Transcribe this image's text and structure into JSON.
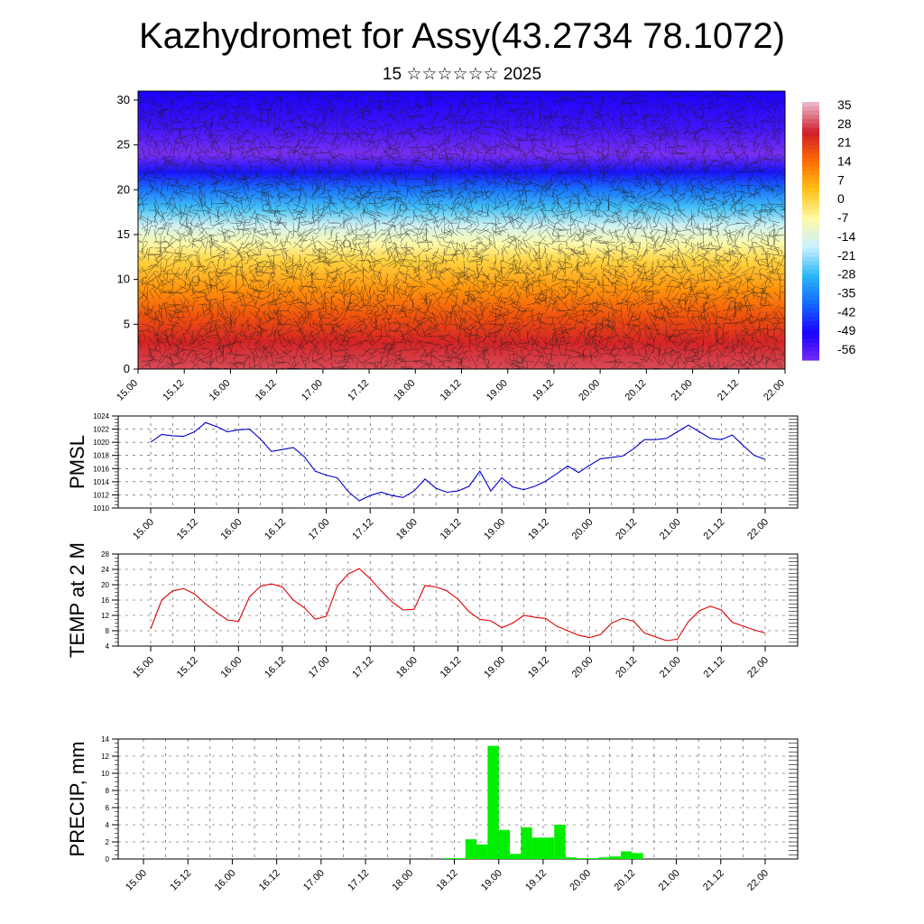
{
  "title": "Kazhydromet for Assy(43.2734 78.1072)",
  "subtitle": "15 ☆☆☆☆☆☆ 2025",
  "colorbar": {
    "labels": [
      "35",
      "28",
      "21",
      "14",
      "7",
      "0",
      "-7",
      "-14",
      "-21",
      "-28",
      "-35",
      "-42",
      "-49",
      "-56"
    ]
  },
  "chart_data": [
    {
      "type": "heatmap",
      "title": "",
      "xlabel": "",
      "ylabel": "",
      "x_tick_labels": [
        "15.00",
        "15.12",
        "16.00",
        "16.12",
        "17.00",
        "17.12",
        "18.00",
        "18.12",
        "19.00",
        "19.12",
        "20.00",
        "20.12",
        "21.00",
        "21.12",
        "22.00"
      ],
      "y_ticks": [
        0,
        5,
        10,
        15,
        20,
        25,
        30
      ],
      "ylim": [
        0,
        31
      ],
      "value_range": [
        -56,
        35
      ],
      "colormap": [
        "#e8b4c4",
        "#d11d2a",
        "#ff6d00",
        "#ffc21a",
        "#fff9a6",
        "#c9f1ff",
        "#29b6f6",
        "#1565ff",
        "#1a00ff",
        "#7a2ff2"
      ],
      "overlay": "wind barbs",
      "rows": [
        {
          "level": 0,
          "value": 28
        },
        {
          "level": 3,
          "value": 24
        },
        {
          "level": 6,
          "value": 18
        },
        {
          "level": 9,
          "value": 10
        },
        {
          "level": 12,
          "value": 2
        },
        {
          "level": 14,
          "value": -6
        },
        {
          "level": 16,
          "value": -14
        },
        {
          "level": 18,
          "value": -24
        },
        {
          "level": 20,
          "value": -34
        },
        {
          "level": 22,
          "value": -44
        },
        {
          "level": 24,
          "value": -56
        },
        {
          "level": 27,
          "value": -50
        },
        {
          "level": 31,
          "value": -46
        }
      ]
    },
    {
      "type": "line",
      "ylabel": "PMSL",
      "ylim": [
        1010,
        1024
      ],
      "y_ticks": [
        1010,
        1012,
        1014,
        1016,
        1018,
        1020,
        1022,
        1024
      ],
      "x_tick_labels": [
        "15.00",
        "15.12",
        "16.00",
        "16.12",
        "17.00",
        "17.12",
        "18.00",
        "18.12",
        "19.00",
        "19.12",
        "20.00",
        "20.12",
        "21.00",
        "21.12",
        "22.00"
      ],
      "color": "#0000cc",
      "series": [
        {
          "x": [
            0,
            3,
            6,
            9,
            12,
            15,
            18,
            21,
            24,
            27,
            30,
            33,
            36,
            39,
            42,
            45,
            48,
            51,
            54,
            57,
            60,
            63,
            66,
            69,
            72,
            75,
            78,
            81,
            84,
            87,
            90,
            93,
            96,
            99,
            102,
            105,
            108,
            111,
            114,
            117,
            120,
            123,
            126,
            129,
            132,
            135,
            138,
            141,
            144,
            147,
            150,
            153,
            156,
            159,
            162,
            165,
            168
          ],
          "values": [
            1020.0,
            1021.2,
            1021.0,
            1020.9,
            1021.6,
            1023.0,
            1022.4,
            1021.6,
            1021.9,
            1022.0,
            1020.5,
            1018.6,
            1018.9,
            1019.2,
            1017.8,
            1015.6,
            1015.0,
            1014.6,
            1012.5,
            1011.1,
            1011.9,
            1012.4,
            1011.9,
            1011.6,
            1012.6,
            1014.4,
            1013.0,
            1012.4,
            1012.6,
            1013.3,
            1015.6,
            1012.6,
            1014.6,
            1013.2,
            1012.8,
            1013.3,
            1014.1,
            1015.2,
            1016.4,
            1015.4,
            1016.5,
            1017.5,
            1017.7,
            1017.9,
            1019.0,
            1020.4,
            1020.4,
            1020.6,
            1021.6,
            1022.6,
            1021.6,
            1020.6,
            1020.4,
            1021.1,
            1019.5,
            1018.0,
            1017.4
          ]
        }
      ]
    },
    {
      "type": "line",
      "ylabel": "TEMP at 2 M",
      "ylim": [
        4,
        28
      ],
      "y_ticks": [
        4,
        8,
        12,
        16,
        20,
        24,
        28
      ],
      "x_tick_labels": [
        "15.00",
        "15.12",
        "16.00",
        "16.12",
        "17.00",
        "17.12",
        "18.00",
        "18.12",
        "19.00",
        "19.12",
        "20.00",
        "20.12",
        "21.00",
        "21.12",
        "22.00"
      ],
      "color": "#dd0000",
      "series": [
        {
          "x": [
            0,
            3,
            6,
            9,
            12,
            15,
            18,
            21,
            24,
            27,
            30,
            33,
            36,
            39,
            42,
            45,
            48,
            51,
            54,
            57,
            60,
            63,
            66,
            69,
            72,
            75,
            78,
            81,
            84,
            87,
            90,
            93,
            96,
            99,
            102,
            105,
            108,
            111,
            114,
            117,
            120,
            123,
            126,
            129,
            132,
            135,
            138,
            141,
            144,
            147,
            150,
            153,
            156,
            159,
            162,
            165,
            168
          ],
          "values": [
            8.5,
            16.0,
            18.4,
            19.0,
            17.6,
            15.0,
            12.8,
            10.8,
            10.4,
            16.8,
            19.6,
            20.2,
            19.4,
            16.0,
            14.0,
            11.0,
            11.8,
            19.6,
            22.8,
            24.2,
            21.6,
            18.4,
            15.5,
            13.4,
            13.6,
            19.8,
            19.4,
            18.4,
            16.2,
            13.0,
            11.0,
            10.6,
            8.8,
            10.0,
            12.0,
            11.5,
            11.2,
            9.2,
            8.0,
            6.8,
            6.2,
            7.0,
            10.0,
            11.2,
            10.5,
            7.4,
            6.4,
            5.4,
            5.8,
            10.4,
            13.2,
            14.4,
            13.4,
            10.2,
            9.2,
            8.2,
            7.4
          ]
        }
      ]
    },
    {
      "type": "bar",
      "ylabel": "PRECIP, mm",
      "ylim": [
        0,
        14
      ],
      "y_ticks": [
        0,
        2,
        4,
        6,
        8,
        10,
        12,
        14
      ],
      "x_tick_labels": [
        "15.00",
        "15.12",
        "16.00",
        "16.12",
        "17.00",
        "17.12",
        "18.00",
        "18.12",
        "19.00",
        "19.12",
        "20.00",
        "20.12",
        "21.00",
        "21.12",
        "22.00"
      ],
      "color": "#00ee00",
      "series": [
        {
          "x": [
            81,
            84,
            87,
            90,
            93,
            96,
            99,
            102,
            105,
            108,
            111,
            114,
            117,
            120,
            123,
            126,
            129,
            132,
            135
          ],
          "values": [
            0.1,
            0.1,
            2.3,
            1.7,
            13.2,
            3.4,
            0.6,
            3.7,
            2.5,
            2.5,
            4.0,
            0.2,
            0.1,
            0.1,
            0.2,
            0.3,
            0.9,
            0.7,
            0.0
          ]
        }
      ]
    }
  ]
}
